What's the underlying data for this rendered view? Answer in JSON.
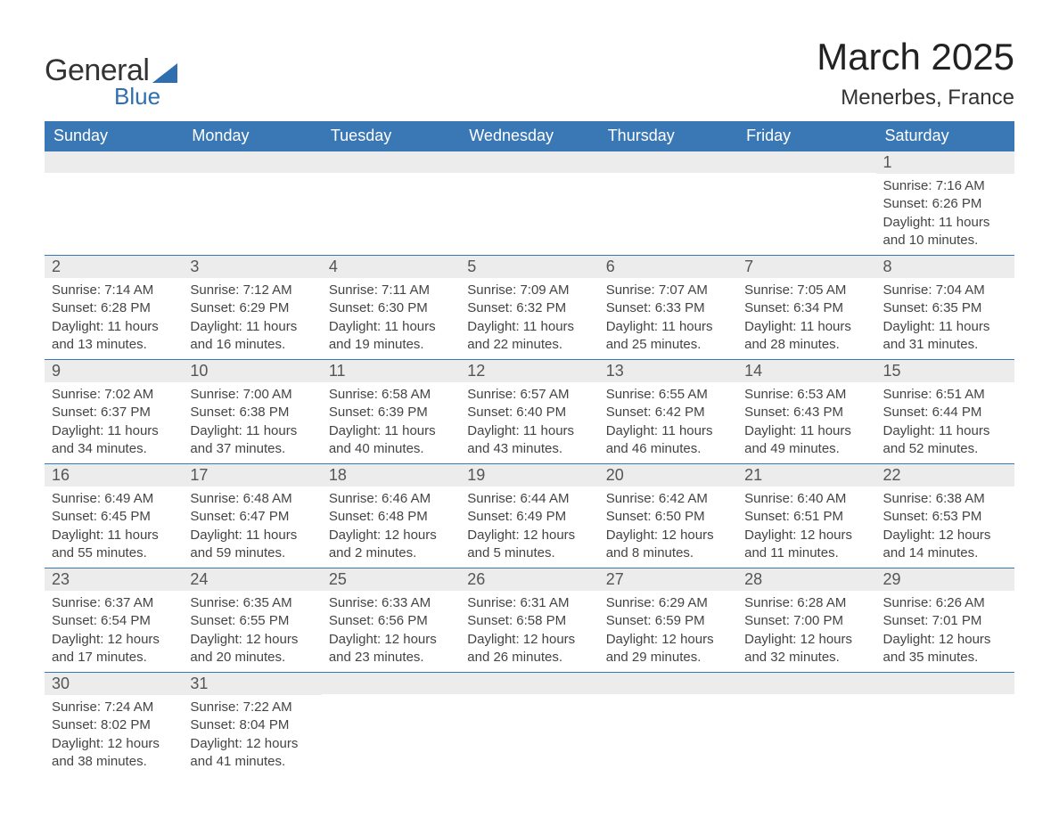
{
  "brand": {
    "line1": "General",
    "line2": "Blue",
    "tri_color": "#2f6fb0"
  },
  "title": "March 2025",
  "location": "Menerbes, France",
  "colors": {
    "header_bg": "#3a78b5",
    "header_text": "#ffffff",
    "daynum_bg": "#ececec",
    "daynum_text": "#555555",
    "border": "#3a78b5",
    "body_text": "#444444"
  },
  "day_headers": [
    "Sunday",
    "Monday",
    "Tuesday",
    "Wednesday",
    "Thursday",
    "Friday",
    "Saturday"
  ],
  "weeks": [
    [
      null,
      null,
      null,
      null,
      null,
      null,
      {
        "n": "1",
        "sunrise": "Sunrise: 7:16 AM",
        "sunset": "Sunset: 6:26 PM",
        "dl1": "Daylight: 11 hours",
        "dl2": "and 10 minutes."
      }
    ],
    [
      {
        "n": "2",
        "sunrise": "Sunrise: 7:14 AM",
        "sunset": "Sunset: 6:28 PM",
        "dl1": "Daylight: 11 hours",
        "dl2": "and 13 minutes."
      },
      {
        "n": "3",
        "sunrise": "Sunrise: 7:12 AM",
        "sunset": "Sunset: 6:29 PM",
        "dl1": "Daylight: 11 hours",
        "dl2": "and 16 minutes."
      },
      {
        "n": "4",
        "sunrise": "Sunrise: 7:11 AM",
        "sunset": "Sunset: 6:30 PM",
        "dl1": "Daylight: 11 hours",
        "dl2": "and 19 minutes."
      },
      {
        "n": "5",
        "sunrise": "Sunrise: 7:09 AM",
        "sunset": "Sunset: 6:32 PM",
        "dl1": "Daylight: 11 hours",
        "dl2": "and 22 minutes."
      },
      {
        "n": "6",
        "sunrise": "Sunrise: 7:07 AM",
        "sunset": "Sunset: 6:33 PM",
        "dl1": "Daylight: 11 hours",
        "dl2": "and 25 minutes."
      },
      {
        "n": "7",
        "sunrise": "Sunrise: 7:05 AM",
        "sunset": "Sunset: 6:34 PM",
        "dl1": "Daylight: 11 hours",
        "dl2": "and 28 minutes."
      },
      {
        "n": "8",
        "sunrise": "Sunrise: 7:04 AM",
        "sunset": "Sunset: 6:35 PM",
        "dl1": "Daylight: 11 hours",
        "dl2": "and 31 minutes."
      }
    ],
    [
      {
        "n": "9",
        "sunrise": "Sunrise: 7:02 AM",
        "sunset": "Sunset: 6:37 PM",
        "dl1": "Daylight: 11 hours",
        "dl2": "and 34 minutes."
      },
      {
        "n": "10",
        "sunrise": "Sunrise: 7:00 AM",
        "sunset": "Sunset: 6:38 PM",
        "dl1": "Daylight: 11 hours",
        "dl2": "and 37 minutes."
      },
      {
        "n": "11",
        "sunrise": "Sunrise: 6:58 AM",
        "sunset": "Sunset: 6:39 PM",
        "dl1": "Daylight: 11 hours",
        "dl2": "and 40 minutes."
      },
      {
        "n": "12",
        "sunrise": "Sunrise: 6:57 AM",
        "sunset": "Sunset: 6:40 PM",
        "dl1": "Daylight: 11 hours",
        "dl2": "and 43 minutes."
      },
      {
        "n": "13",
        "sunrise": "Sunrise: 6:55 AM",
        "sunset": "Sunset: 6:42 PM",
        "dl1": "Daylight: 11 hours",
        "dl2": "and 46 minutes."
      },
      {
        "n": "14",
        "sunrise": "Sunrise: 6:53 AM",
        "sunset": "Sunset: 6:43 PM",
        "dl1": "Daylight: 11 hours",
        "dl2": "and 49 minutes."
      },
      {
        "n": "15",
        "sunrise": "Sunrise: 6:51 AM",
        "sunset": "Sunset: 6:44 PM",
        "dl1": "Daylight: 11 hours",
        "dl2": "and 52 minutes."
      }
    ],
    [
      {
        "n": "16",
        "sunrise": "Sunrise: 6:49 AM",
        "sunset": "Sunset: 6:45 PM",
        "dl1": "Daylight: 11 hours",
        "dl2": "and 55 minutes."
      },
      {
        "n": "17",
        "sunrise": "Sunrise: 6:48 AM",
        "sunset": "Sunset: 6:47 PM",
        "dl1": "Daylight: 11 hours",
        "dl2": "and 59 minutes."
      },
      {
        "n": "18",
        "sunrise": "Sunrise: 6:46 AM",
        "sunset": "Sunset: 6:48 PM",
        "dl1": "Daylight: 12 hours",
        "dl2": "and 2 minutes."
      },
      {
        "n": "19",
        "sunrise": "Sunrise: 6:44 AM",
        "sunset": "Sunset: 6:49 PM",
        "dl1": "Daylight: 12 hours",
        "dl2": "and 5 minutes."
      },
      {
        "n": "20",
        "sunrise": "Sunrise: 6:42 AM",
        "sunset": "Sunset: 6:50 PM",
        "dl1": "Daylight: 12 hours",
        "dl2": "and 8 minutes."
      },
      {
        "n": "21",
        "sunrise": "Sunrise: 6:40 AM",
        "sunset": "Sunset: 6:51 PM",
        "dl1": "Daylight: 12 hours",
        "dl2": "and 11 minutes."
      },
      {
        "n": "22",
        "sunrise": "Sunrise: 6:38 AM",
        "sunset": "Sunset: 6:53 PM",
        "dl1": "Daylight: 12 hours",
        "dl2": "and 14 minutes."
      }
    ],
    [
      {
        "n": "23",
        "sunrise": "Sunrise: 6:37 AM",
        "sunset": "Sunset: 6:54 PM",
        "dl1": "Daylight: 12 hours",
        "dl2": "and 17 minutes."
      },
      {
        "n": "24",
        "sunrise": "Sunrise: 6:35 AM",
        "sunset": "Sunset: 6:55 PM",
        "dl1": "Daylight: 12 hours",
        "dl2": "and 20 minutes."
      },
      {
        "n": "25",
        "sunrise": "Sunrise: 6:33 AM",
        "sunset": "Sunset: 6:56 PM",
        "dl1": "Daylight: 12 hours",
        "dl2": "and 23 minutes."
      },
      {
        "n": "26",
        "sunrise": "Sunrise: 6:31 AM",
        "sunset": "Sunset: 6:58 PM",
        "dl1": "Daylight: 12 hours",
        "dl2": "and 26 minutes."
      },
      {
        "n": "27",
        "sunrise": "Sunrise: 6:29 AM",
        "sunset": "Sunset: 6:59 PM",
        "dl1": "Daylight: 12 hours",
        "dl2": "and 29 minutes."
      },
      {
        "n": "28",
        "sunrise": "Sunrise: 6:28 AM",
        "sunset": "Sunset: 7:00 PM",
        "dl1": "Daylight: 12 hours",
        "dl2": "and 32 minutes."
      },
      {
        "n": "29",
        "sunrise": "Sunrise: 6:26 AM",
        "sunset": "Sunset: 7:01 PM",
        "dl1": "Daylight: 12 hours",
        "dl2": "and 35 minutes."
      }
    ],
    [
      {
        "n": "30",
        "sunrise": "Sunrise: 7:24 AM",
        "sunset": "Sunset: 8:02 PM",
        "dl1": "Daylight: 12 hours",
        "dl2": "and 38 minutes."
      },
      {
        "n": "31",
        "sunrise": "Sunrise: 7:22 AM",
        "sunset": "Sunset: 8:04 PM",
        "dl1": "Daylight: 12 hours",
        "dl2": "and 41 minutes."
      },
      null,
      null,
      null,
      null,
      null
    ]
  ]
}
